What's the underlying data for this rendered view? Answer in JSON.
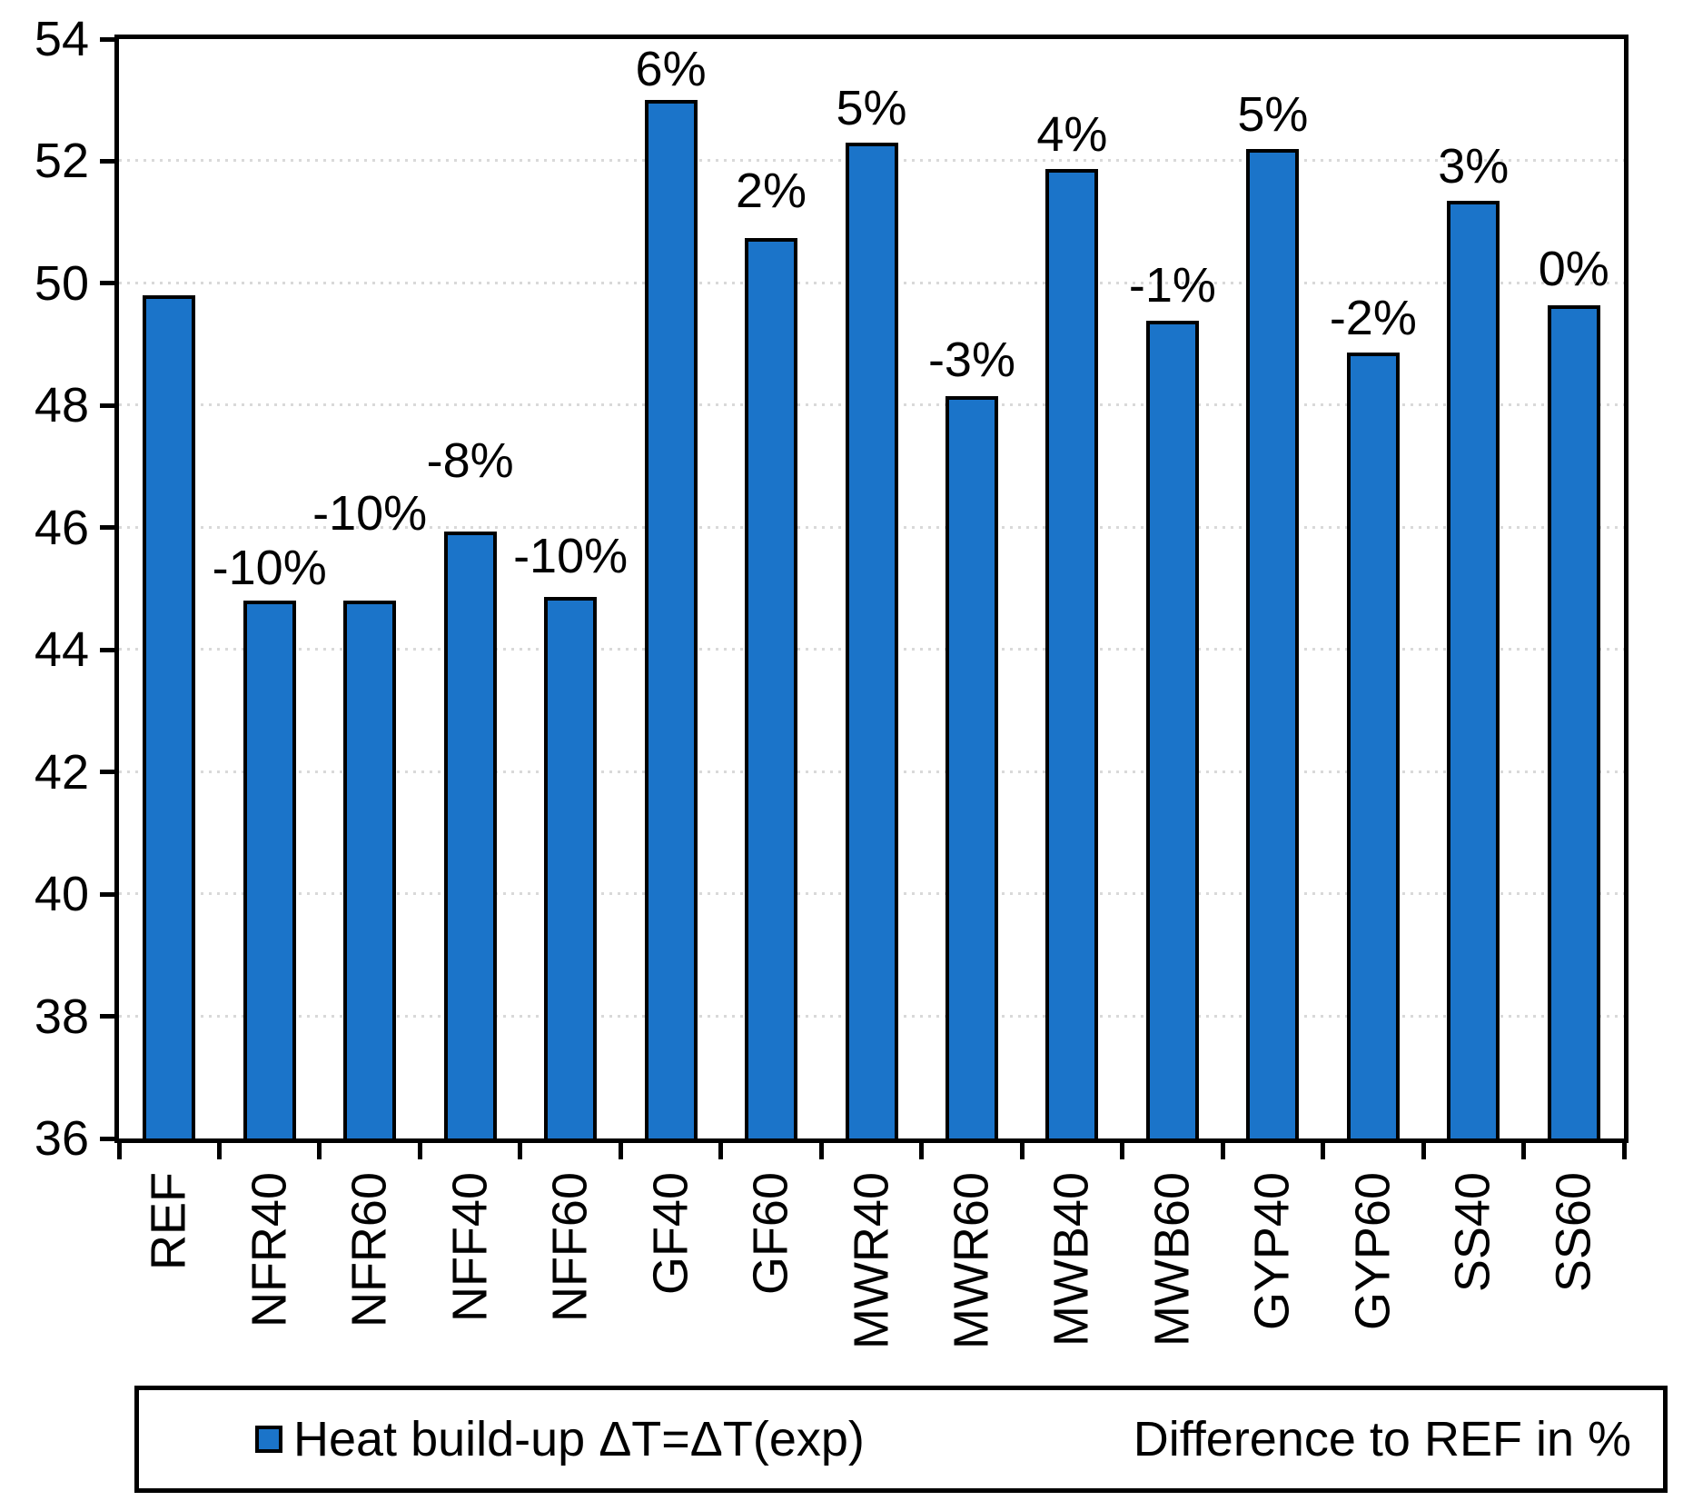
{
  "chart_data": {
    "type": "bar",
    "title": "",
    "xlabel": "",
    "ylabel": "",
    "categories": [
      "REF",
      "NFR40",
      "NFR60",
      "NFF40",
      "NFF60",
      "GF40",
      "GF60",
      "MWR40",
      "MWR60",
      "MWB40",
      "MWB60",
      "GYP40",
      "GYP60",
      "SS40",
      "SS60"
    ],
    "series": [
      {
        "name": "Heat build-up ΔT=ΔT(exp)",
        "values": [
          49.8,
          44.8,
          44.8,
          45.93,
          44.87,
          53.0,
          50.74,
          52.3,
          48.15,
          51.88,
          49.39,
          52.2,
          48.87,
          51.35,
          49.64
        ]
      }
    ],
    "bar_labels": [
      "",
      "-10%",
      "-10%",
      "-8%",
      "-10%",
      "6%",
      "2%",
      "5%",
      "-3%",
      "4%",
      "-1%",
      "5%",
      "-2%",
      "3%",
      "0%"
    ],
    "ylim": [
      36,
      54
    ],
    "yticks": [
      36,
      38,
      40,
      42,
      44,
      46,
      48,
      50,
      52,
      54
    ],
    "grid": "horizontal-dotted",
    "legend_position": "bottom"
  },
  "legend": {
    "series_label": "Heat build-up ΔT=ΔT(exp)",
    "diff_label": "Difference to REF in %"
  },
  "colors": {
    "bar_fill": "#1B74C9",
    "bar_border": "#000000",
    "gridline": "#D9D9D9",
    "axis": "#000000",
    "text": "#000000",
    "background": "#FFFFFF"
  }
}
